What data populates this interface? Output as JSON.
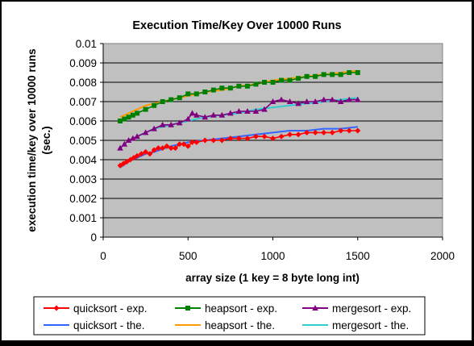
{
  "chart_data": {
    "type": "line",
    "title": "Execution Time/Key Over 10000 Runs",
    "xlabel": "array size (1 key = 8 byte long int)",
    "ylabel_line1": "execution time/key over 10000 runs",
    "ylabel_line2": "(sec.)",
    "xlim": [
      0,
      2000
    ],
    "ylim": [
      0,
      0.01
    ],
    "x_ticks": [
      0,
      500,
      1000,
      1500,
      2000
    ],
    "x_tick_labels": [
      "0",
      "500",
      "1000",
      "1500",
      "2000"
    ],
    "y_ticks": [
      0,
      0.001,
      0.002,
      0.003,
      0.004,
      0.005,
      0.006,
      0.007,
      0.008,
      0.009,
      0.01
    ],
    "y_tick_labels": [
      "0",
      "0.001",
      "0.002",
      "0.003",
      "0.004",
      "0.005",
      "0.006",
      "0.007",
      "0.008",
      "0.009",
      "0.01"
    ],
    "grid": "horizontal",
    "plot_background": "#c0c0c0",
    "legend_position": "bottom",
    "series": [
      {
        "name": "quicksort - exp.",
        "color": "#ff0000",
        "marker": "diamond",
        "x": [
          100,
          120,
          140,
          160,
          180,
          200,
          225,
          250,
          275,
          300,
          325,
          350,
          375,
          400,
          425,
          450,
          475,
          500,
          525,
          550,
          600,
          650,
          700,
          750,
          800,
          850,
          900,
          950,
          1000,
          1050,
          1100,
          1150,
          1200,
          1250,
          1300,
          1350,
          1400,
          1450,
          1500
        ],
        "y": [
          0.0037,
          0.0038,
          0.0039,
          0.004,
          0.0041,
          0.0042,
          0.0043,
          0.0044,
          0.0043,
          0.0045,
          0.0046,
          0.0046,
          0.0047,
          0.0046,
          0.0046,
          0.0048,
          0.0048,
          0.0047,
          0.0049,
          0.0049,
          0.005,
          0.005,
          0.005,
          0.0051,
          0.0051,
          0.0051,
          0.0052,
          0.0052,
          0.0051,
          0.0052,
          0.0053,
          0.0053,
          0.0054,
          0.0054,
          0.0054,
          0.0054,
          0.0055,
          0.0055,
          0.0055
        ]
      },
      {
        "name": "heapsort - exp.",
        "color": "#008000",
        "marker": "square",
        "x": [
          100,
          125,
          150,
          175,
          200,
          250,
          300,
          350,
          400,
          450,
          500,
          550,
          600,
          650,
          700,
          750,
          800,
          850,
          900,
          950,
          1000,
          1050,
          1100,
          1150,
          1200,
          1250,
          1300,
          1350,
          1400,
          1450,
          1500
        ],
        "y": [
          0.006,
          0.0061,
          0.0062,
          0.0063,
          0.0064,
          0.0066,
          0.0068,
          0.007,
          0.0071,
          0.0072,
          0.0074,
          0.0074,
          0.0075,
          0.0076,
          0.0077,
          0.0077,
          0.0078,
          0.0078,
          0.0079,
          0.008,
          0.008,
          0.0081,
          0.0081,
          0.0082,
          0.0083,
          0.0083,
          0.0084,
          0.0084,
          0.0084,
          0.0085,
          0.0085
        ]
      },
      {
        "name": "mergesort - exp.",
        "color": "#800080",
        "marker": "triangle",
        "x": [
          100,
          125,
          150,
          175,
          200,
          250,
          300,
          350,
          400,
          450,
          500,
          525,
          550,
          600,
          650,
          700,
          750,
          800,
          850,
          900,
          950,
          1000,
          1050,
          1100,
          1150,
          1200,
          1250,
          1300,
          1350,
          1400,
          1450,
          1500
        ],
        "y": [
          0.0046,
          0.0048,
          0.005,
          0.0051,
          0.0052,
          0.0054,
          0.0056,
          0.0058,
          0.0058,
          0.0059,
          0.0061,
          0.0064,
          0.0063,
          0.0062,
          0.0063,
          0.0063,
          0.0064,
          0.0065,
          0.0065,
          0.0065,
          0.0066,
          0.007,
          0.0071,
          0.007,
          0.0069,
          0.007,
          0.007,
          0.0071,
          0.0071,
          0.007,
          0.0071,
          0.0071
        ]
      },
      {
        "name": "quicksort - the.",
        "color": "#3366ff",
        "marker": "none",
        "x": [
          100,
          150,
          200,
          250,
          300,
          400,
          500,
          600,
          700,
          800,
          900,
          1000,
          1100,
          1200,
          1300,
          1400,
          1500
        ],
        "y": [
          0.0036,
          0.0039,
          0.0041,
          0.0043,
          0.0044,
          0.0047,
          0.0049,
          0.005,
          0.0051,
          0.0052,
          0.0053,
          0.0054,
          0.0055,
          0.0055,
          0.0056,
          0.0056,
          0.0057
        ]
      },
      {
        "name": "heapsort - the.",
        "color": "#ff9900",
        "marker": "none",
        "x": [
          100,
          150,
          200,
          250,
          300,
          400,
          500,
          600,
          700,
          800,
          900,
          1000,
          1100,
          1200,
          1300,
          1400,
          1500
        ],
        "y": [
          0.0062,
          0.0064,
          0.0066,
          0.0068,
          0.0069,
          0.0071,
          0.0073,
          0.0075,
          0.0076,
          0.0078,
          0.0079,
          0.0081,
          0.0082,
          0.0083,
          0.0084,
          0.0085,
          0.0086
        ]
      },
      {
        "name": "mergesort - the.",
        "color": "#33cccc",
        "marker": "none",
        "x": [
          100,
          150,
          200,
          250,
          300,
          400,
          500,
          600,
          700,
          800,
          900,
          1000,
          1100,
          1200,
          1300,
          1400,
          1500
        ],
        "y": [
          0.0046,
          0.005,
          0.0052,
          0.0054,
          0.0056,
          0.0058,
          0.006,
          0.0062,
          0.0063,
          0.0064,
          0.0066,
          0.0067,
          0.0068,
          0.0069,
          0.007,
          0.0071,
          0.0072
        ]
      }
    ]
  }
}
